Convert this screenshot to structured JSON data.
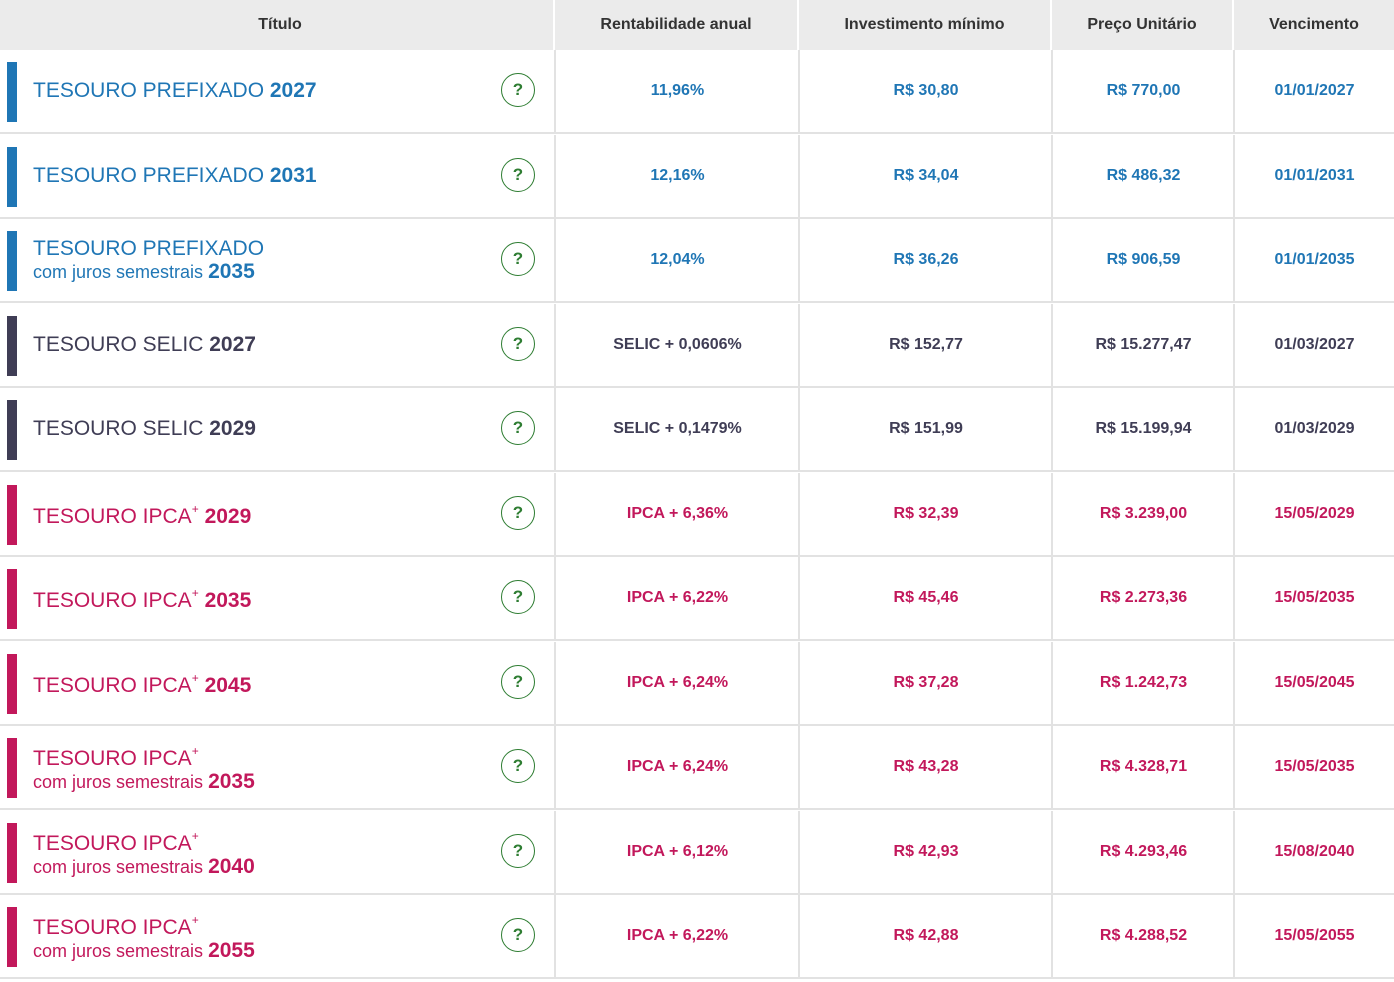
{
  "headers": {
    "titulo": "Título",
    "rentabilidade": "Rentabilidade anual",
    "investimento": "Investimento mínimo",
    "preco": "Preço Unitário",
    "vencimento": "Vencimento"
  },
  "colors": {
    "prefixado": "#1f76b5",
    "selic": "#3f3d55",
    "ipca": "#c2185b",
    "help_icon": "#2e7d32"
  },
  "help_icon_glyph": "?",
  "rows": [
    {
      "type": "prefixado",
      "name": "TESOURO PREFIXADO",
      "plus": "",
      "sub": "",
      "year": "2027",
      "rent": "11,96%",
      "inv": "R$ 30,80",
      "preco": "R$ 770,00",
      "venc": "01/01/2027"
    },
    {
      "type": "prefixado",
      "name": "TESOURO PREFIXADO",
      "plus": "",
      "sub": "",
      "year": "2031",
      "rent": "12,16%",
      "inv": "R$ 34,04",
      "preco": "R$ 486,32",
      "venc": "01/01/2031"
    },
    {
      "type": "prefixado",
      "name": "TESOURO PREFIXADO",
      "plus": "",
      "sub": "com juros semestrais",
      "year": "2035",
      "rent": "12,04%",
      "inv": "R$ 36,26",
      "preco": "R$ 906,59",
      "venc": "01/01/2035"
    },
    {
      "type": "selic",
      "name": "TESOURO SELIC",
      "plus": "",
      "sub": "",
      "year": "2027",
      "rent": "SELIC + 0,0606%",
      "inv": "R$ 152,77",
      "preco": "R$ 15.277,47",
      "venc": "01/03/2027"
    },
    {
      "type": "selic",
      "name": "TESOURO SELIC",
      "plus": "",
      "sub": "",
      "year": "2029",
      "rent": "SELIC + 0,1479%",
      "inv": "R$ 151,99",
      "preco": "R$ 15.199,94",
      "venc": "01/03/2029"
    },
    {
      "type": "ipca",
      "name": "TESOURO IPCA",
      "plus": "+",
      "sub": "",
      "year": "2029",
      "rent": "IPCA + 6,36%",
      "inv": "R$ 32,39",
      "preco": "R$ 3.239,00",
      "venc": "15/05/2029"
    },
    {
      "type": "ipca",
      "name": "TESOURO IPCA",
      "plus": "+",
      "sub": "",
      "year": "2035",
      "rent": "IPCA + 6,22%",
      "inv": "R$ 45,46",
      "preco": "R$ 2.273,36",
      "venc": "15/05/2035"
    },
    {
      "type": "ipca",
      "name": "TESOURO IPCA",
      "plus": "+",
      "sub": "",
      "year": "2045",
      "rent": "IPCA + 6,24%",
      "inv": "R$ 37,28",
      "preco": "R$ 1.242,73",
      "venc": "15/05/2045"
    },
    {
      "type": "ipca",
      "name": "TESOURO IPCA",
      "plus": "+",
      "sub": "com juros semestrais",
      "year": "2035",
      "rent": "IPCA + 6,24%",
      "inv": "R$ 43,28",
      "preco": "R$ 4.328,71",
      "venc": "15/05/2035"
    },
    {
      "type": "ipca",
      "name": "TESOURO IPCA",
      "plus": "+",
      "sub": "com juros semestrais",
      "year": "2040",
      "rent": "IPCA + 6,12%",
      "inv": "R$ 42,93",
      "preco": "R$ 4.293,46",
      "venc": "15/08/2040"
    },
    {
      "type": "ipca",
      "name": "TESOURO IPCA",
      "plus": "+",
      "sub": "com juros semestrais",
      "year": "2055",
      "rent": "IPCA + 6,22%",
      "inv": "R$ 42,88",
      "preco": "R$ 4.288,52",
      "venc": "15/05/2055"
    }
  ]
}
